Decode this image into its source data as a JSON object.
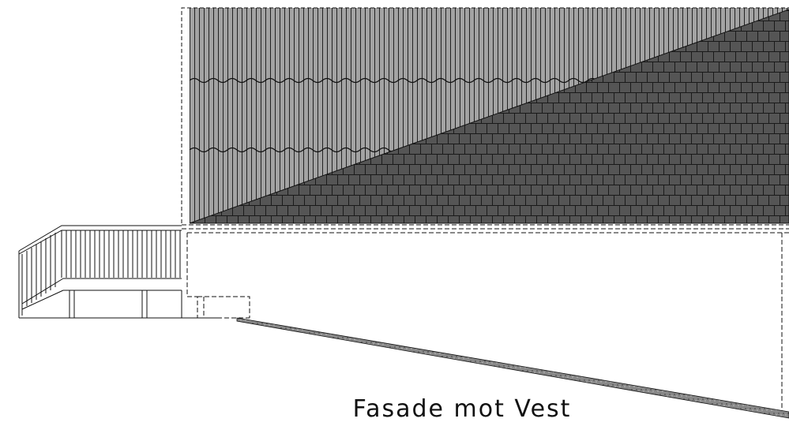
{
  "caption": "Fasade mot Vest"
}
